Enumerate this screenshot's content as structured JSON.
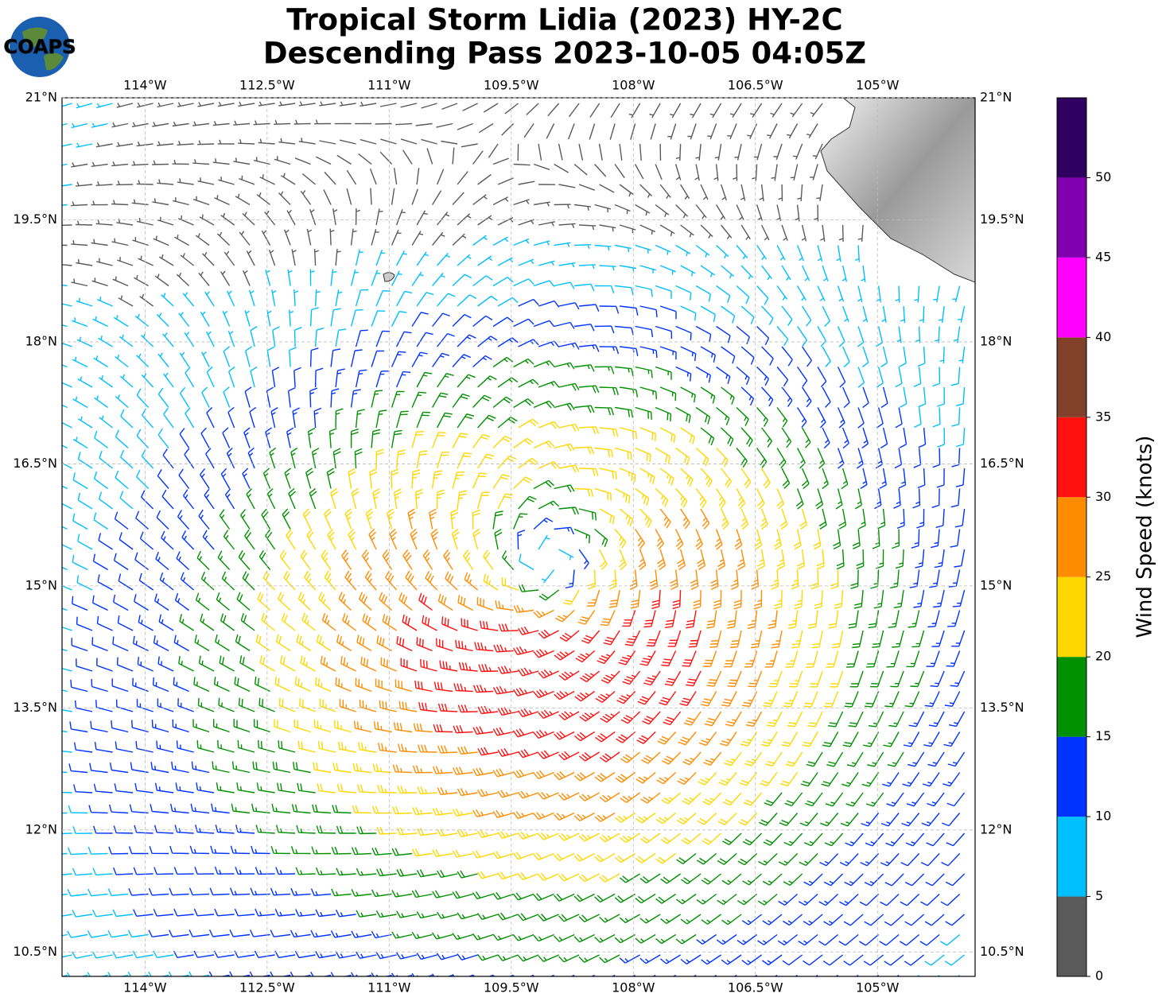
{
  "header": {
    "title": [
      "Tropical Storm Lidia (2023) HY-2C",
      "Descending Pass 2023-10-05 04:05Z"
    ]
  },
  "logo": "COAPS",
  "map": {
    "xlim": [
      -115.02,
      -103.8
    ],
    "ylim": [
      10.2,
      21
    ],
    "lon_ticks": [
      {
        "value": -114,
        "label": "114°W"
      },
      {
        "value": -112.5,
        "label": "112.5°W"
      },
      {
        "value": -111,
        "label": "111°W"
      },
      {
        "value": -109.5,
        "label": "109.5°W"
      },
      {
        "value": -108,
        "label": "108°W"
      },
      {
        "value": -106.5,
        "label": "106.5°W"
      },
      {
        "value": -105,
        "label": "105°W"
      }
    ],
    "lat_ticks": [
      {
        "value": 21,
        "label": "21°N"
      },
      {
        "value": 19.5,
        "label": "19.5°N"
      },
      {
        "value": 18,
        "label": "18°N"
      },
      {
        "value": 16.5,
        "label": "16.5°N"
      },
      {
        "value": 15,
        "label": "15°N"
      },
      {
        "value": 13.5,
        "label": "13.5°N"
      },
      {
        "value": 12,
        "label": "12°N"
      },
      {
        "value": 10.5,
        "label": "10.5°N"
      }
    ]
  },
  "colorbar": {
    "label": "Wind Speed (knots)",
    "lim": [
      0,
      55
    ],
    "ticks": [
      0,
      5,
      10,
      15,
      20,
      25,
      30,
      35,
      40,
      45,
      50
    ],
    "colors": [
      "#5a5a5a",
      "#00bfff",
      "#0033ff",
      "#009000",
      "#ffd700",
      "#ff8c00",
      "#ff1010",
      "#80402a",
      "#ff00ff",
      "#8000b0",
      "#300060"
    ]
  }
}
